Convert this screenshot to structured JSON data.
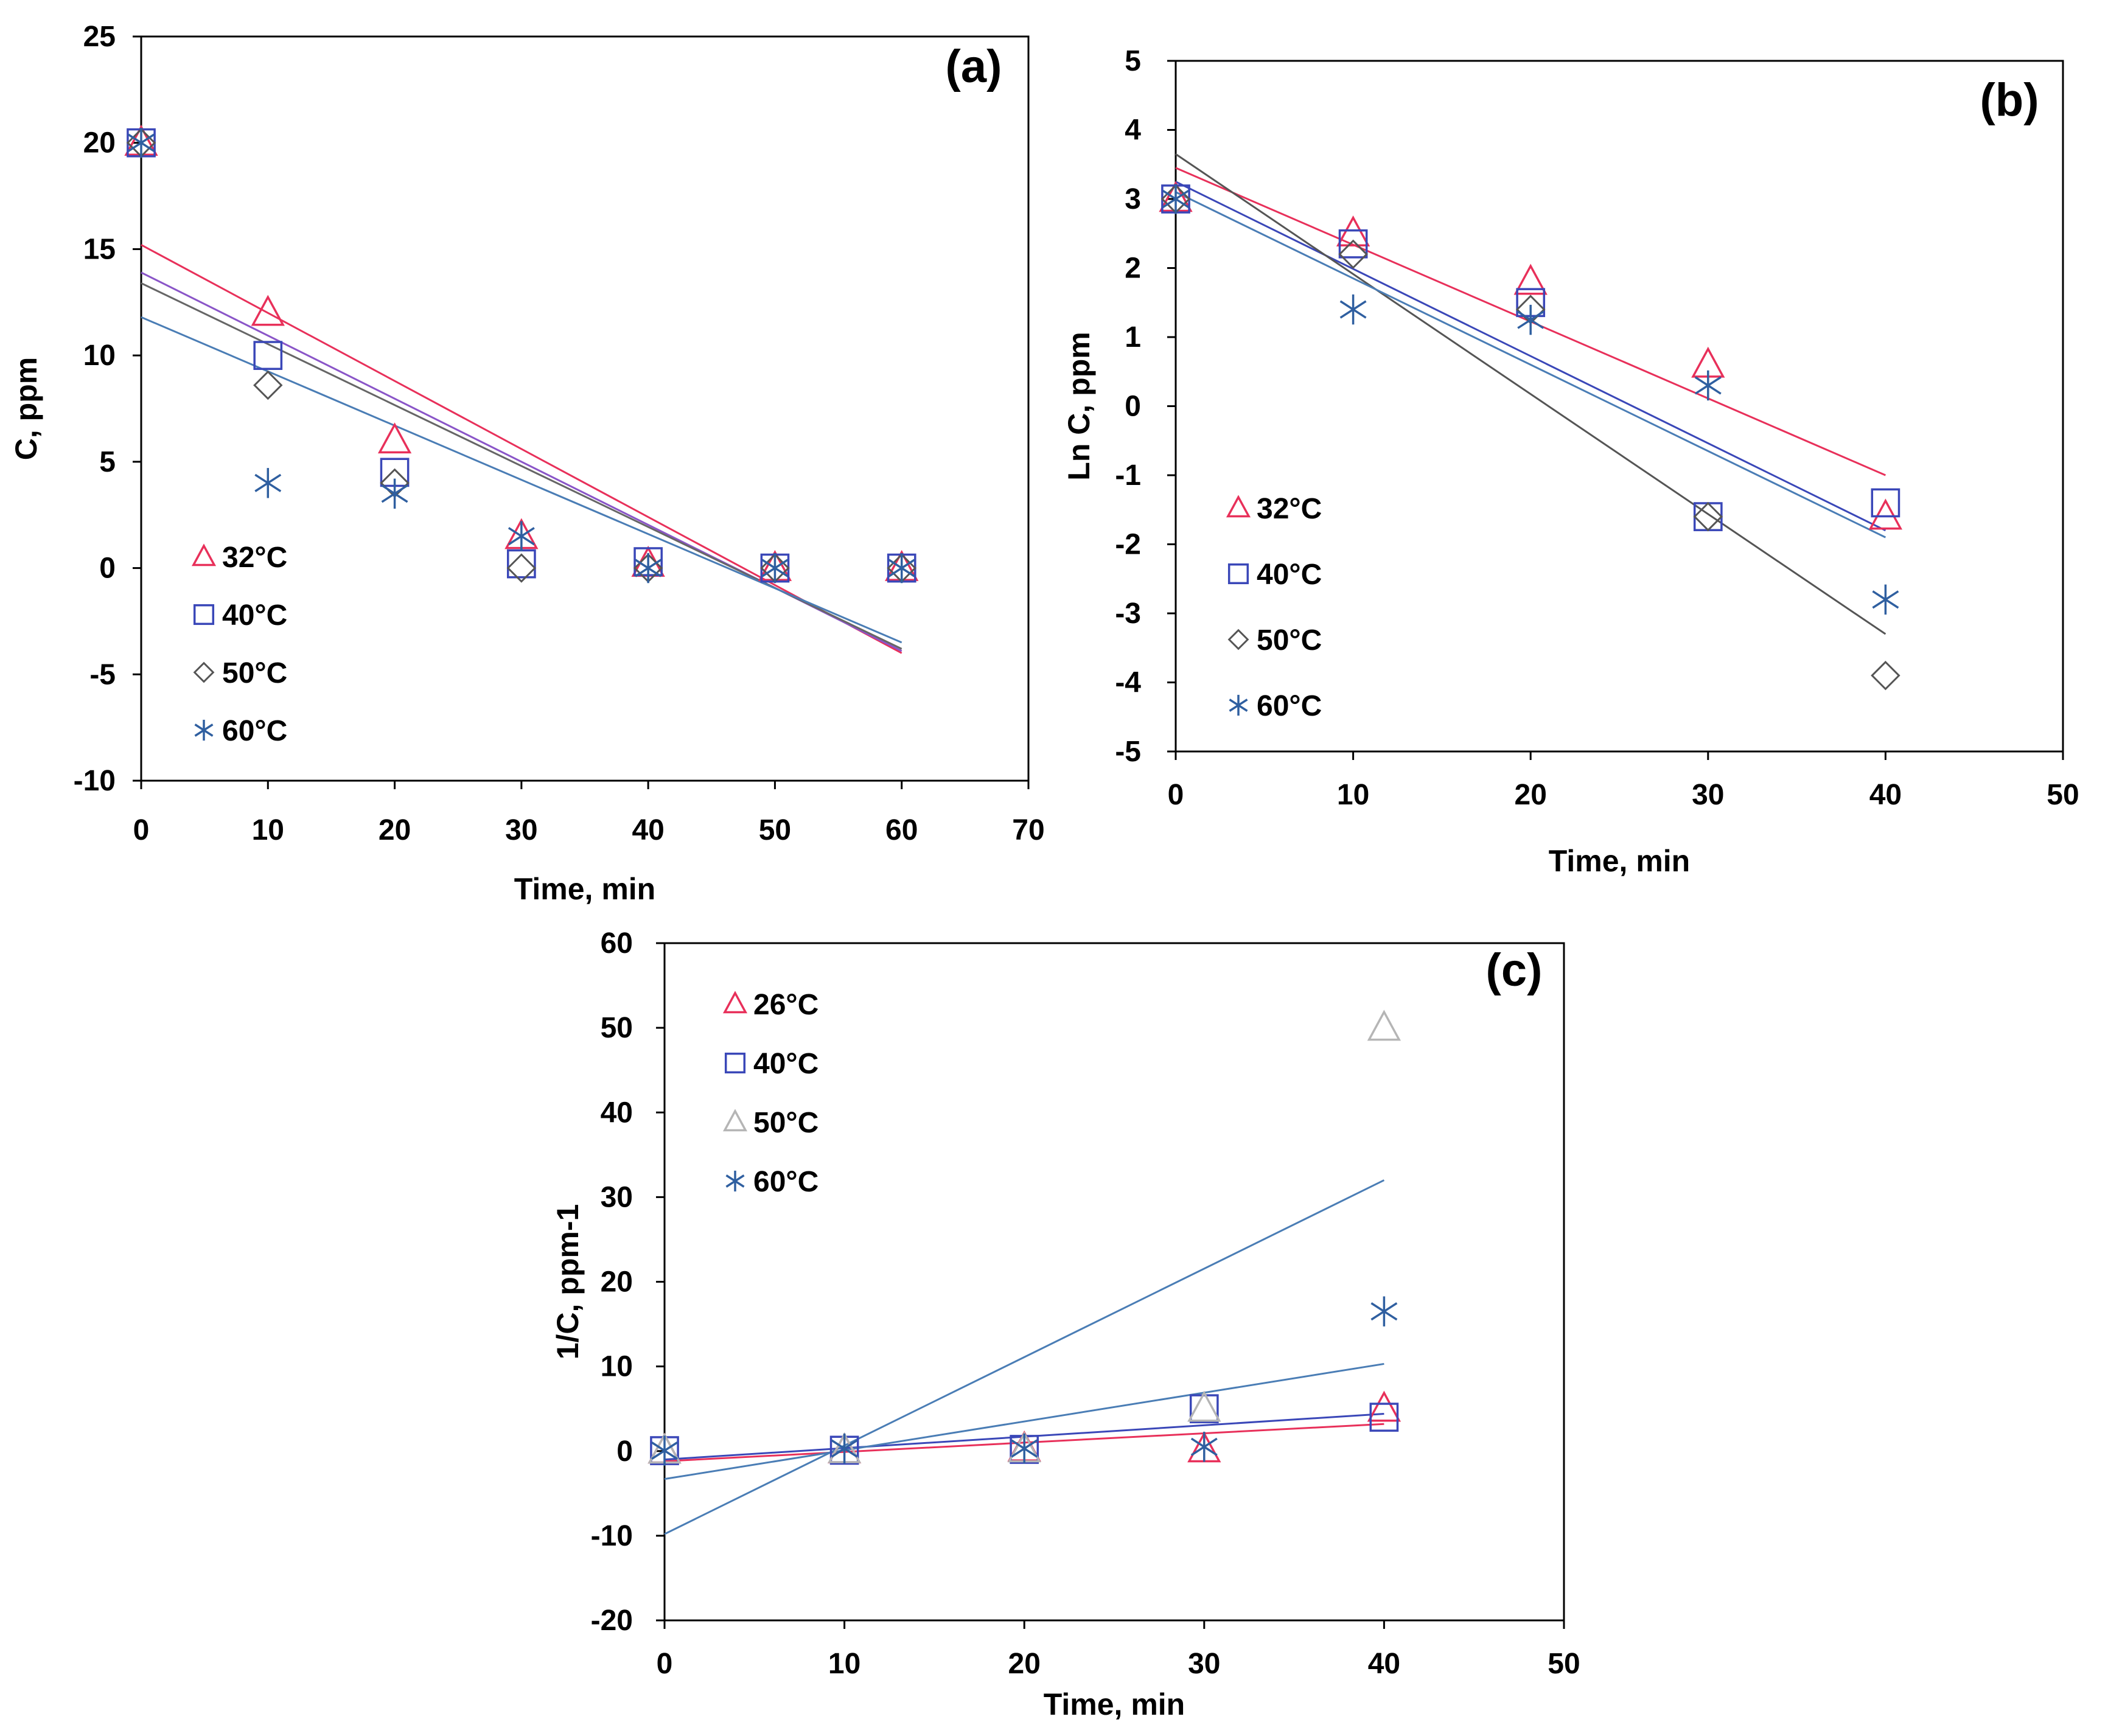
{
  "chart_data": [
    {
      "id": "a",
      "type": "scatter",
      "panel_label": "(a)",
      "xlabel": "Time, min",
      "ylabel": "C, ppm",
      "xlim": [
        0,
        70
      ],
      "ylim": [
        -10,
        25
      ],
      "xticks": [
        0,
        10,
        20,
        30,
        40,
        50,
        60,
        70
      ],
      "yticks": [
        -10,
        -5,
        0,
        5,
        10,
        15,
        20,
        25
      ],
      "legend_position": "left",
      "series": [
        {
          "name": "32°C",
          "marker": "triangle",
          "color": "#e8305a",
          "x": [
            0,
            10,
            20,
            30,
            40,
            50,
            60
          ],
          "y": [
            20,
            12,
            6,
            1.5,
            0.2,
            0,
            0
          ],
          "fit": {
            "x": [
              0,
              60
            ],
            "y": [
              15.2,
              -4.0
            ]
          }
        },
        {
          "name": "40°C",
          "marker": "square",
          "color": "#3a47b8",
          "x": [
            0,
            10,
            20,
            30,
            40,
            50,
            60
          ],
          "y": [
            20,
            10,
            4.5,
            0.2,
            0.3,
            0,
            0
          ],
          "fit": {
            "x": [
              0,
              60
            ],
            "y": [
              13.9,
              -3.9
            ],
            "color": "#8a55c8"
          }
        },
        {
          "name": "50°C",
          "marker": "diamond",
          "color": "#555555",
          "x": [
            0,
            10,
            20,
            30,
            40,
            50,
            60
          ],
          "y": [
            20,
            8.6,
            4,
            0,
            0,
            0,
            0
          ],
          "fit": {
            "x": [
              0,
              60
            ],
            "y": [
              13.4,
              -3.8
            ],
            "color": "#666666"
          }
        },
        {
          "name": "60°C",
          "marker": "asterisk",
          "color": "#2f5fa0",
          "x": [
            0,
            10,
            20,
            30,
            40,
            50,
            60
          ],
          "y": [
            20,
            4,
            3.5,
            1.5,
            0,
            0,
            0
          ],
          "fit": {
            "x": [
              0,
              60
            ],
            "y": [
              11.8,
              -3.5
            ],
            "color": "#4a7db5"
          }
        }
      ]
    },
    {
      "id": "b",
      "type": "scatter",
      "panel_label": "(b)",
      "xlabel": "Time, min",
      "ylabel": "Ln C, ppm",
      "xlim": [
        0,
        50
      ],
      "ylim": [
        -5,
        5
      ],
      "xticks": [
        0,
        10,
        20,
        30,
        40,
        50
      ],
      "yticks": [
        -5,
        -4,
        -3,
        -2,
        -1,
        0,
        1,
        2,
        3,
        4,
        5
      ],
      "legend_position": "left",
      "series": [
        {
          "name": "32°C",
          "marker": "triangle",
          "color": "#e8305a",
          "x": [
            0,
            10,
            20,
            30,
            40
          ],
          "y": [
            3.0,
            2.5,
            1.8,
            0.6,
            -1.6
          ],
          "fit": {
            "x": [
              0,
              40
            ],
            "y": [
              3.45,
              -1.0
            ]
          }
        },
        {
          "name": "40°C",
          "marker": "square",
          "color": "#3a47b8",
          "x": [
            0,
            10,
            20,
            30,
            40
          ],
          "y": [
            3.0,
            2.35,
            1.5,
            -1.6,
            -1.4
          ],
          "fit": {
            "x": [
              0,
              40
            ],
            "y": [
              3.25,
              -1.8
            ]
          }
        },
        {
          "name": "50°C",
          "marker": "diamond",
          "color": "#555555",
          "x": [
            0,
            10,
            20,
            30,
            40
          ],
          "y": [
            3.0,
            2.2,
            1.4,
            -1.6,
            -3.9
          ],
          "fit": {
            "x": [
              0,
              40
            ],
            "y": [
              3.65,
              -3.3
            ],
            "color": "#555555"
          }
        },
        {
          "name": "60°C",
          "marker": "asterisk",
          "color": "#2f5fa0",
          "x": [
            0,
            10,
            20,
            30,
            40
          ],
          "y": [
            3.0,
            1.4,
            1.25,
            0.3,
            -2.8
          ],
          "fit": {
            "x": [
              0,
              40
            ],
            "y": [
              3.1,
              -1.9
            ],
            "color": "#4a7db5"
          }
        }
      ]
    },
    {
      "id": "c",
      "type": "scatter",
      "panel_label": "(c)",
      "xlabel": "Time, min",
      "ylabel": "1/C, ppm-1",
      "xlim": [
        0,
        50
      ],
      "ylim": [
        -20,
        60
      ],
      "xticks": [
        0,
        10,
        20,
        30,
        40,
        50
      ],
      "yticks": [
        -20,
        -10,
        0,
        10,
        20,
        30,
        40,
        50,
        60
      ],
      "legend_position": "top-left",
      "series": [
        {
          "name": "26°C",
          "marker": "triangle",
          "color": "#e8305a",
          "x": [
            0,
            10,
            20,
            30,
            40
          ],
          "y": [
            0.05,
            0.08,
            0.3,
            0.2,
            5
          ],
          "fit": {
            "x": [
              0,
              40
            ],
            "y": [
              -1.2,
              3.2
            ]
          }
        },
        {
          "name": "40°C",
          "marker": "square",
          "color": "#3a47b8",
          "x": [
            0,
            10,
            20,
            30,
            40
          ],
          "y": [
            0.05,
            0.1,
            0.2,
            5,
            4
          ],
          "fit": {
            "x": [
              0,
              40
            ],
            "y": [
              -1.0,
              4.4
            ],
            "color": "#3a47b8"
          }
        },
        {
          "name": "50°C",
          "marker": "triangle",
          "color": "#b5b5b5",
          "x": [
            0,
            10,
            20,
            30,
            40
          ],
          "y": [
            0.05,
            0.1,
            0.2,
            5,
            50
          ],
          "fit": {
            "x": [
              0,
              40
            ],
            "y": [
              -9.8,
              32.0
            ],
            "color": "#4a7db5"
          }
        },
        {
          "name": "60°C",
          "marker": "asterisk",
          "color": "#2f5fa0",
          "x": [
            0,
            10,
            20,
            30,
            40
          ],
          "y": [
            0.05,
            0.3,
            0.3,
            0.5,
            16.5
          ],
          "fit": {
            "x": [
              0,
              40
            ],
            "y": [
              -3.3,
              10.3
            ],
            "color": "#4a7db5"
          }
        }
      ]
    }
  ]
}
